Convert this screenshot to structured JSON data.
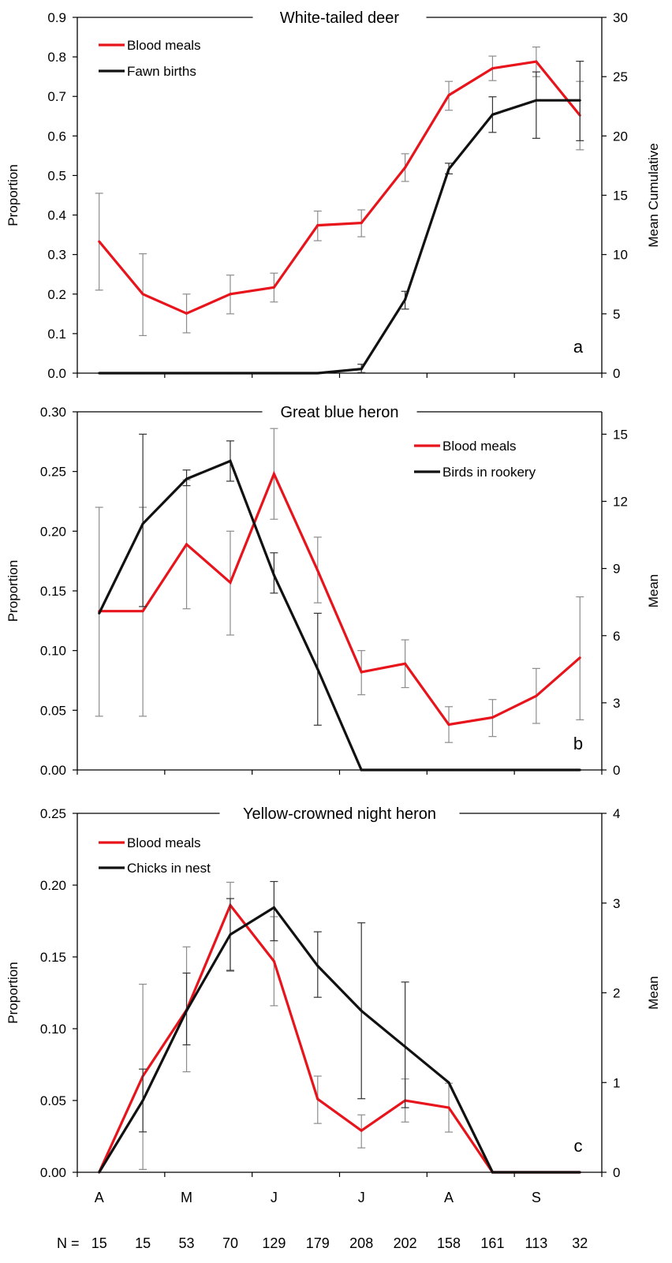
{
  "months": {
    "labels": [
      "A",
      "M",
      "J",
      "J",
      "A",
      "S"
    ],
    "positions": [
      1,
      3,
      5,
      7,
      9,
      11
    ]
  },
  "n_row": {
    "prefix": "N  =",
    "values": [
      "15",
      "15",
      "53",
      "70",
      "129",
      "179",
      "208",
      "202",
      "158",
      "161",
      "113",
      "32"
    ]
  },
  "colors": {
    "blood_meals": "#e8141c",
    "host": "#111111",
    "err_red": "#8c8c8c",
    "err_black": "#333333"
  },
  "chart_data": [
    {
      "type": "line",
      "title": "White-tailed deer",
      "panel_letter": "a",
      "ylabel": "Proportion",
      "y2label": "Mean Cumulative",
      "xlim": [
        0.5,
        12.5
      ],
      "ylim": [
        0,
        0.9
      ],
      "yticks": [
        "0.0",
        "0.1",
        "0.2",
        "0.3",
        "0.4",
        "0.5",
        "0.6",
        "0.7",
        "0.8",
        "0.9"
      ],
      "y2lim": [
        0,
        30
      ],
      "y2ticks": [
        "0",
        "5",
        "10",
        "15",
        "20",
        "25",
        "30"
      ],
      "legend_position": "top-left",
      "x": [
        1,
        2,
        3,
        4,
        5,
        6,
        7,
        8,
        9,
        10,
        11,
        12
      ],
      "series": [
        {
          "name": "Blood meals",
          "axis": "left",
          "color": "red",
          "values": [
            0.333,
            0.2,
            0.151,
            0.2,
            0.217,
            0.374,
            0.38,
            0.52,
            0.703,
            0.771,
            0.788,
            0.652
          ],
          "err_low": [
            0.21,
            0.095,
            0.102,
            0.15,
            0.18,
            0.335,
            0.345,
            0.485,
            0.665,
            0.74,
            0.75,
            0.565
          ],
          "err_high": [
            0.455,
            0.302,
            0.2,
            0.248,
            0.253,
            0.41,
            0.413,
            0.555,
            0.738,
            0.802,
            0.825,
            0.738
          ]
        },
        {
          "name": "Fawn births",
          "axis": "right",
          "color": "black",
          "values": [
            0,
            0,
            0,
            0,
            0,
            0,
            0.35,
            6.2,
            17.2,
            21.8,
            23,
            23
          ],
          "err_low": [
            null,
            null,
            null,
            null,
            null,
            null,
            0.05,
            5.4,
            16.8,
            20.3,
            19.8,
            19.6
          ],
          "err_high": [
            null,
            null,
            null,
            null,
            null,
            null,
            0.75,
            6.9,
            17.7,
            23.3,
            25.4,
            26.3
          ]
        }
      ]
    },
    {
      "type": "line",
      "title": "Great blue heron",
      "panel_letter": "b",
      "ylabel": "Proportion",
      "y2label": "Mean",
      "xlim": [
        0.5,
        12.5
      ],
      "ylim": [
        0,
        0.3
      ],
      "yticks": [
        "0.00",
        "0.05",
        "0.10",
        "0.15",
        "0.20",
        "0.25",
        "0.30"
      ],
      "y2lim": [
        0,
        16
      ],
      "y2ticks": [
        "0",
        "3",
        "6",
        "9",
        "12",
        "15"
      ],
      "legend_position": "top-right",
      "x": [
        1,
        2,
        3,
        4,
        5,
        6,
        7,
        8,
        9,
        10,
        11,
        12
      ],
      "series": [
        {
          "name": "Blood meals",
          "axis": "left",
          "color": "red",
          "values": [
            0.133,
            0.133,
            0.189,
            0.157,
            0.248,
            0.167,
            0.082,
            0.089,
            0.038,
            0.044,
            0.062,
            0.094
          ],
          "err_low": [
            0.045,
            0.045,
            0.135,
            0.113,
            0.21,
            0.14,
            0.063,
            0.069,
            0.023,
            0.028,
            0.039,
            0.042
          ],
          "err_high": [
            0.22,
            0.22,
            0.243,
            0.2,
            0.286,
            0.195,
            0.1,
            0.109,
            0.053,
            0.059,
            0.085,
            0.145
          ]
        },
        {
          "name": "Birds in rookery",
          "axis": "right",
          "color": "black",
          "values": [
            7,
            11,
            13,
            13.8,
            8.7,
            4.5,
            0,
            0,
            0,
            0,
            0,
            0
          ],
          "err_low": [
            null,
            7.3,
            12.7,
            12.9,
            7.9,
            2.0,
            null,
            null,
            null,
            null,
            null,
            null
          ],
          "err_high": [
            null,
            15.0,
            13.4,
            14.7,
            9.7,
            7.0,
            null,
            null,
            null,
            null,
            null,
            null
          ]
        }
      ]
    },
    {
      "type": "line",
      "title": "Yellow-crowned night heron",
      "panel_letter": "c",
      "ylabel": "Proportion",
      "y2label": "Mean",
      "xlim": [
        0.5,
        12.5
      ],
      "ylim": [
        0,
        0.25
      ],
      "yticks": [
        "0.00",
        "0.05",
        "0.10",
        "0.15",
        "0.20",
        "0.25"
      ],
      "y2lim": [
        0,
        4
      ],
      "y2ticks": [
        "0",
        "1",
        "2",
        "3",
        "4"
      ],
      "legend_position": "top-left",
      "x": [
        1,
        2,
        3,
        4,
        5,
        6,
        7,
        8,
        9,
        10,
        11,
        12
      ],
      "series": [
        {
          "name": "Blood meals",
          "axis": "left",
          "color": "red",
          "values": [
            0,
            0.067,
            0.113,
            0.186,
            0.147,
            0.051,
            0.029,
            0.05,
            0.045,
            0,
            0,
            0
          ],
          "err_low": [
            null,
            0.002,
            0.07,
            0.14,
            0.116,
            0.034,
            0.017,
            0.035,
            0.028,
            null,
            null,
            null
          ],
          "err_high": [
            null,
            0.131,
            0.157,
            0.202,
            0.178,
            0.067,
            0.04,
            0.065,
            0.062,
            null,
            null,
            null
          ]
        },
        {
          "name": "Chicks in nest",
          "axis": "right",
          "color": "black",
          "values": [
            0,
            0.8,
            1.8,
            2.65,
            2.95,
            2.3,
            1.8,
            1.4,
            1.0,
            0,
            0,
            0
          ],
          "err_low": [
            null,
            0.45,
            1.42,
            2.25,
            2.58,
            1.95,
            0.82,
            0.72,
            null,
            null,
            null,
            null
          ],
          "err_high": [
            null,
            1.15,
            2.22,
            3.05,
            3.24,
            2.68,
            2.78,
            2.12,
            null,
            null,
            null,
            null
          ]
        }
      ]
    }
  ]
}
